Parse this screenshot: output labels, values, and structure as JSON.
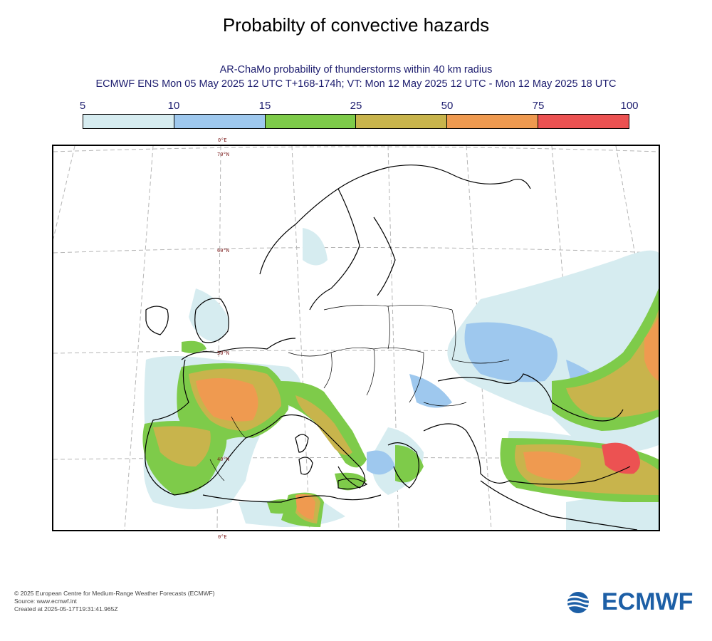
{
  "title": "Probabilty of convective hazards",
  "subtitle_line1": "AR-ChaMo probability of thunderstorms within 40 km radius",
  "subtitle_line2": "ECMWF ENS Mon 05 May 2025 12 UTC T+168-174h; VT: Mon 12 May 2025 12 UTC - Mon 12 May 2025 18 UTC",
  "legend": {
    "ticks": [
      "5",
      "10",
      "15",
      "25",
      "50",
      "75",
      "100"
    ],
    "colors": [
      "#d6ecf0",
      "#9ec8ee",
      "#7ecb4a",
      "#c8b44c",
      "#ef9a50",
      "#ec5252"
    ]
  },
  "map": {
    "labels": {
      "lon_top": "0°E",
      "lat_70": "70°N",
      "lat_60": "60°N",
      "lat_50": "50°N",
      "lat_40": "40°N",
      "lon_bottom": "0°E"
    }
  },
  "footer": {
    "copyright": "© 2025 European Centre for Medium-Range Weather Forecasts (ECMWF)",
    "source": "Source: www.ecmwf.int",
    "created": "Created at 2025-05-17T19:31:41.965Z"
  },
  "logo": {
    "text": "ECMWF",
    "color": "#1d5fa6"
  }
}
